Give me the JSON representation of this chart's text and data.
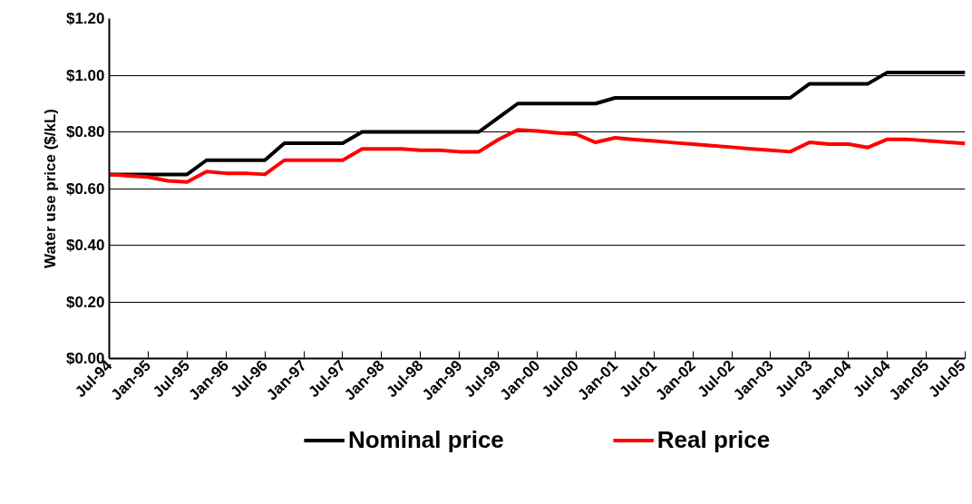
{
  "chart_data": {
    "type": "line",
    "ylabel": "Water use price ($/kL)",
    "categories": [
      "Jul-94",
      null,
      "Jan-95",
      null,
      "Jul-95",
      null,
      "Jan-96",
      null,
      "Jul-96",
      null,
      "Jan-97",
      null,
      "Jul-97",
      null,
      "Jan-98",
      null,
      "Jul-98",
      null,
      "Jan-99",
      null,
      "Jul-99",
      null,
      "Jan-00",
      null,
      "Jul-00",
      null,
      "Jan-01",
      null,
      "Jul-01",
      null,
      "Jan-02",
      null,
      "Jul-02",
      null,
      "Jan-03",
      null,
      "Jul-03",
      null,
      "Jan-04",
      null,
      "Jul-04",
      null,
      "Jan-05",
      null,
      "Jul-05"
    ],
    "series": [
      {
        "name": "Nominal price",
        "color": "#000000",
        "values": [
          0.65,
          0.65,
          0.65,
          0.65,
          0.65,
          0.7,
          0.7,
          0.7,
          0.7,
          0.76,
          0.76,
          0.76,
          0.76,
          0.8,
          0.8,
          0.8,
          0.8,
          0.8,
          0.8,
          0.8,
          0.85,
          0.9,
          0.9,
          0.9,
          0.9,
          0.9,
          0.92,
          0.92,
          0.92,
          0.92,
          0.92,
          0.92,
          0.92,
          0.92,
          0.92,
          0.92,
          0.97,
          0.97,
          0.97,
          0.97,
          1.01,
          1.01,
          1.01,
          1.01,
          1.01
        ]
      },
      {
        "name": "Real price",
        "color": "#ff0000",
        "values": [
          0.65,
          0.645,
          0.641,
          0.627,
          0.623,
          0.66,
          0.654,
          0.654,
          0.65,
          0.7,
          0.7,
          0.7,
          0.7,
          0.74,
          0.74,
          0.74,
          0.735,
          0.735,
          0.73,
          0.73,
          0.773,
          0.807,
          0.803,
          0.797,
          0.792,
          0.763,
          0.779,
          0.773,
          0.768,
          0.762,
          0.757,
          0.751,
          0.746,
          0.74,
          0.735,
          0.73,
          0.763,
          0.757,
          0.757,
          0.745,
          0.774,
          0.774,
          0.769,
          0.764,
          0.759
        ]
      }
    ],
    "ylim": [
      0,
      1.2
    ],
    "yticks": [
      {
        "value": 0,
        "label": "$0.00"
      },
      {
        "value": 0.2,
        "label": "$0.20"
      },
      {
        "value": 0.4,
        "label": "$0.40"
      },
      {
        "value": 0.6,
        "label": "$0.60"
      },
      {
        "value": 0.8,
        "label": "$0.80"
      },
      {
        "value": 1.0,
        "label": "$1.00"
      },
      {
        "value": 1.2,
        "label": "$1.20"
      }
    ],
    "grid": "y",
    "legend": "bottom",
    "line_style": "solid"
  }
}
